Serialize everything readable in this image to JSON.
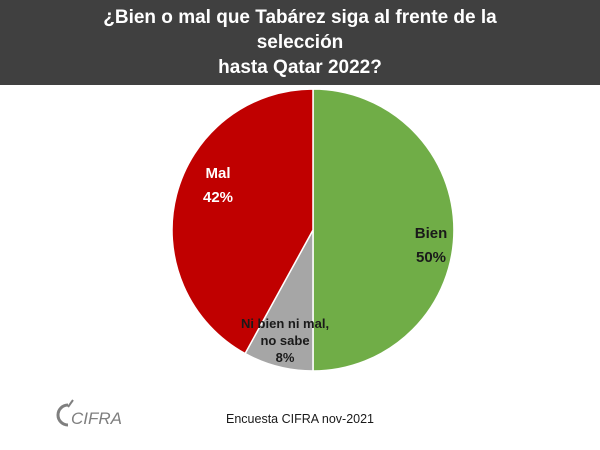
{
  "header": {
    "title_line1": "¿Bien o mal que Tabárez siga al frente de la selección",
    "title_line2": "hasta Qatar 2022?"
  },
  "chart_data": {
    "type": "pie",
    "title": "¿Bien o mal que Tabárez siga al frente de la selección hasta Qatar 2022?",
    "slices": [
      {
        "label": "Bien",
        "value": 50,
        "value_label": "50%",
        "color": "#70AD47"
      },
      {
        "label": "Ni bien ni mal, no sabe",
        "value": 8,
        "value_label": "8%",
        "color": "#A6A6A6"
      },
      {
        "label": "Mal",
        "value": 42,
        "value_label": "42%",
        "color": "#C00000"
      }
    ],
    "start_angle_deg": 0,
    "direction": "clockwise"
  },
  "footer": {
    "source": "Encuesta CIFRA nov-2021",
    "logo_text": "CIFRA"
  },
  "colors": {
    "header_bg": "#404040",
    "logo": "#7F7F7F"
  }
}
